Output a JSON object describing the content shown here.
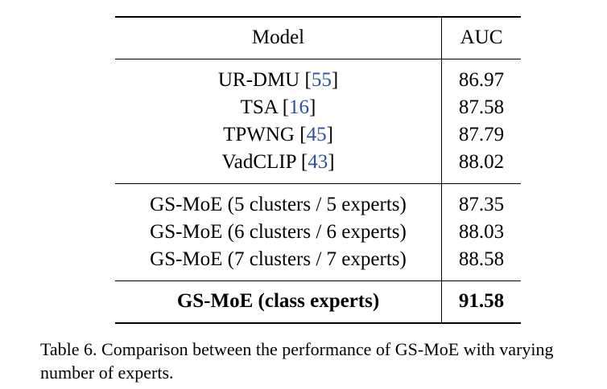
{
  "table": {
    "header": {
      "model": "Model",
      "auc": "AUC"
    },
    "baselines": [
      {
        "name": "UR-DMU",
        "ref": "55",
        "auc": "86.97"
      },
      {
        "name": "TSA",
        "ref": "16",
        "auc": "87.58"
      },
      {
        "name": "TPWNG",
        "ref": "45",
        "auc": "87.79"
      },
      {
        "name": "VadCLIP",
        "ref": "43",
        "auc": "88.02"
      }
    ],
    "variants": [
      {
        "name": "GS-MoE (5 clusters / 5 experts)",
        "auc": "87.35"
      },
      {
        "name": "GS-MoE (6 clusters / 6 experts)",
        "auc": "88.03"
      },
      {
        "name": "GS-MoE (7 clusters / 7 experts)",
        "auc": "88.58"
      }
    ],
    "best": {
      "name": "GS-MoE (class experts)",
      "auc": "91.58"
    }
  },
  "caption": {
    "text": "Table 6. Comparison between the performance of GS-MoE with varying number of experts."
  }
}
